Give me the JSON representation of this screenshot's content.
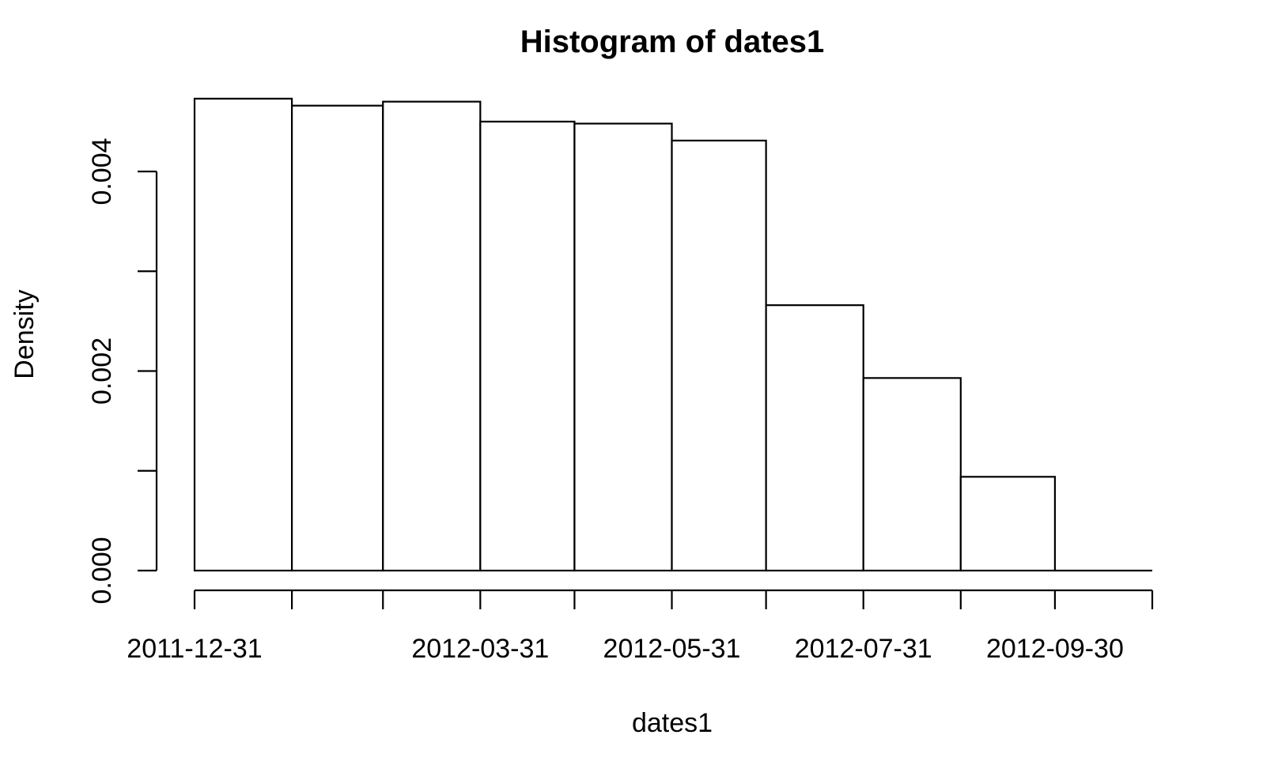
{
  "chart_data": {
    "type": "bar",
    "subtype": "histogram",
    "title": "Histogram of dates1",
    "xlabel": "dates1",
    "ylabel": "Density",
    "ylim": [
      0,
      0.0048
    ],
    "y_ticks": [
      0.0,
      0.001,
      0.002,
      0.003,
      0.004
    ],
    "y_tick_labels": [
      "0.000",
      "",
      "0.002",
      "",
      "0.004"
    ],
    "x_range": [
      "2011-12-31",
      "2012-10-31"
    ],
    "x_ticks": [
      "2011-12-31",
      "2012-01-31",
      "2012-02-29",
      "2012-03-31",
      "2012-04-30",
      "2012-05-31",
      "2012-06-30",
      "2012-07-31",
      "2012-08-31",
      "2012-09-30",
      "2012-10-31"
    ],
    "x_tick_labels": [
      "2011-12-31",
      "",
      "",
      "2012-03-31",
      "",
      "2012-05-31",
      "",
      "2012-07-31",
      "",
      "2012-09-30",
      ""
    ],
    "bins": [
      {
        "start": "2011-12-31",
        "end": "2012-01-31",
        "density": 0.00473
      },
      {
        "start": "2012-01-31",
        "end": "2012-02-29",
        "density": 0.00466
      },
      {
        "start": "2012-02-29",
        "end": "2012-03-31",
        "density": 0.0047
      },
      {
        "start": "2012-03-31",
        "end": "2012-04-30",
        "density": 0.0045
      },
      {
        "start": "2012-04-30",
        "end": "2012-05-31",
        "density": 0.00448
      },
      {
        "start": "2012-05-31",
        "end": "2012-06-30",
        "density": 0.00431
      },
      {
        "start": "2012-06-30",
        "end": "2012-07-31",
        "density": 0.00266
      },
      {
        "start": "2012-07-31",
        "end": "2012-08-31",
        "density": 0.00193
      },
      {
        "start": "2012-08-31",
        "end": "2012-09-30",
        "density": 0.00094
      },
      {
        "start": "2012-09-30",
        "end": "2012-10-31",
        "density": 0.0
      }
    ],
    "grid": false,
    "legend": "none",
    "colors": {
      "bar_fill": "#ffffff",
      "bar_stroke": "#000000"
    }
  }
}
